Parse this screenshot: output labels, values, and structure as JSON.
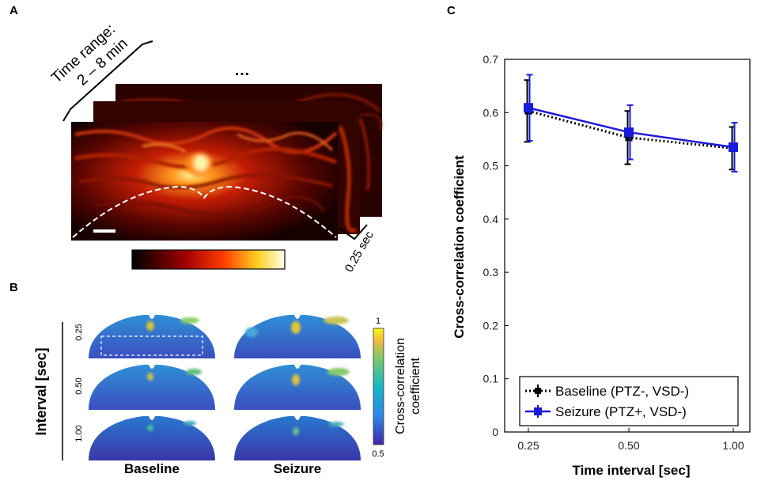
{
  "panel_a": {
    "label": "A",
    "time_range_line1": "Time range:",
    "time_range_line2": "2 – 8 min",
    "ellipsis": "…",
    "interval_label": "0.25 sec"
  },
  "panel_b": {
    "label": "B",
    "y_title": "Interval [sec]",
    "row_labels": [
      "0.25",
      "0.50",
      "1.00"
    ],
    "col_labels": [
      "Baseline",
      "Seizure"
    ],
    "colorbar_title_line1": "Cross-correlation",
    "colorbar_title_line2": "coefficient",
    "colorbar_max": "1",
    "colorbar_min": "0.5"
  },
  "colors": {
    "baseline": "#000000",
    "seizure": "#1a1adb",
    "parula_low": "#3e26a8",
    "parula_high": "#f9fb15"
  },
  "chart_data": {
    "type": "line",
    "panel_label": "C",
    "title": "",
    "xlabel": "Time interval [sec]",
    "ylabel": "Cross-correlation coefficient",
    "x": [
      0.25,
      0.5,
      1.0
    ],
    "x_tick_labels": [
      "0.25",
      "0.50",
      "1.00"
    ],
    "ylim": [
      0,
      0.7
    ],
    "y_ticks": [
      "0",
      "0.1",
      "0.2",
      "0.3",
      "0.4",
      "0.5",
      "0.6",
      "0.7"
    ],
    "grid": false,
    "legend_position": "bottom",
    "series": [
      {
        "name": "Baseline (PTZ-, VSD-)",
        "values": [
          0.603,
          0.553,
          0.533
        ],
        "err": [
          0.058,
          0.05,
          0.04
        ],
        "style": "dotted"
      },
      {
        "name": "Seizure (PTZ+, VSD-)",
        "values": [
          0.609,
          0.563,
          0.535
        ],
        "err": [
          0.062,
          0.051,
          0.046
        ],
        "style": "solid"
      }
    ]
  }
}
